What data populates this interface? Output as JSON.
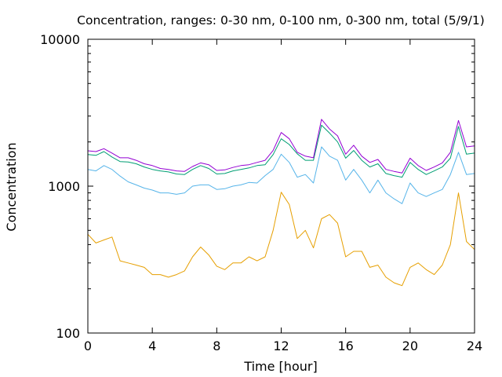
{
  "chart_data": {
    "type": "line",
    "title": "Concentration, ranges: 0-30 nm, 0-100 nm, 0-300 nm, total (5/9/1)",
    "xlabel": "Time [hour]",
    "ylabel": "Concentration",
    "xlim": [
      0,
      24
    ],
    "ylim": [
      100,
      10000
    ],
    "y_scale": "log",
    "x_ticks": [
      0,
      4,
      8,
      12,
      16,
      20,
      24
    ],
    "x_tick_labels": [
      "0",
      "4",
      "8",
      "12",
      "16",
      "20",
      "24"
    ],
    "y_major_ticks": [
      100,
      1000,
      10000
    ],
    "y_tick_labels": [
      "100",
      "1000",
      "10000"
    ],
    "grid": false,
    "legend": "none",
    "x": [
      0,
      0.5,
      1,
      1.5,
      2,
      2.5,
      3,
      3.5,
      4,
      4.5,
      5,
      5.5,
      6,
      6.5,
      7,
      7.5,
      8,
      8.5,
      9,
      9.5,
      10,
      10.5,
      11,
      11.5,
      12,
      12.5,
      13,
      13.5,
      14,
      14.5,
      15,
      15.5,
      16,
      16.5,
      17,
      17.5,
      18,
      18.5,
      19,
      19.5,
      20,
      20.5,
      21,
      21.5,
      22,
      22.5,
      23,
      23.5,
      24
    ],
    "series": [
      {
        "color": "#e69f00",
        "values": [
          470,
          410,
          430,
          450,
          310,
          300,
          290,
          280,
          250,
          250,
          240,
          250,
          265,
          330,
          385,
          340,
          285,
          270,
          300,
          300,
          330,
          310,
          330,
          500,
          910,
          750,
          440,
          500,
          380,
          600,
          640,
          560,
          330,
          360,
          360,
          280,
          290,
          240,
          220,
          210,
          280,
          300,
          270,
          250,
          290,
          400,
          900,
          420,
          370
        ]
      },
      {
        "color": "#56b4e9",
        "values": [
          1300,
          1270,
          1380,
          1300,
          1170,
          1070,
          1020,
          970,
          940,
          900,
          900,
          880,
          900,
          1000,
          1020,
          1020,
          950,
          960,
          1000,
          1020,
          1060,
          1050,
          1180,
          1300,
          1650,
          1450,
          1150,
          1200,
          1050,
          1850,
          1600,
          1500,
          1100,
          1300,
          1100,
          900,
          1100,
          900,
          820,
          760,
          1050,
          900,
          850,
          900,
          950,
          1200,
          1700,
          1200,
          1220
        ]
      },
      {
        "color": "#009e73",
        "values": [
          1640,
          1620,
          1720,
          1580,
          1470,
          1460,
          1420,
          1350,
          1300,
          1270,
          1250,
          1210,
          1200,
          1300,
          1380,
          1320,
          1210,
          1220,
          1270,
          1300,
          1330,
          1380,
          1400,
          1640,
          2100,
          1920,
          1660,
          1500,
          1500,
          2600,
          2300,
          2000,
          1550,
          1750,
          1500,
          1350,
          1420,
          1220,
          1180,
          1150,
          1450,
          1300,
          1200,
          1270,
          1350,
          1550,
          2550,
          1650,
          1680
        ]
      },
      {
        "color": "#9400d3",
        "values": [
          1740,
          1720,
          1800,
          1680,
          1560,
          1560,
          1500,
          1420,
          1380,
          1320,
          1300,
          1270,
          1260,
          1360,
          1440,
          1400,
          1280,
          1290,
          1340,
          1380,
          1400,
          1450,
          1500,
          1750,
          2320,
          2100,
          1700,
          1600,
          1560,
          2850,
          2450,
          2200,
          1650,
          1900,
          1600,
          1450,
          1520,
          1300,
          1260,
          1230,
          1550,
          1380,
          1280,
          1350,
          1440,
          1700,
          2800,
          1850,
          1880
        ]
      }
    ]
  }
}
